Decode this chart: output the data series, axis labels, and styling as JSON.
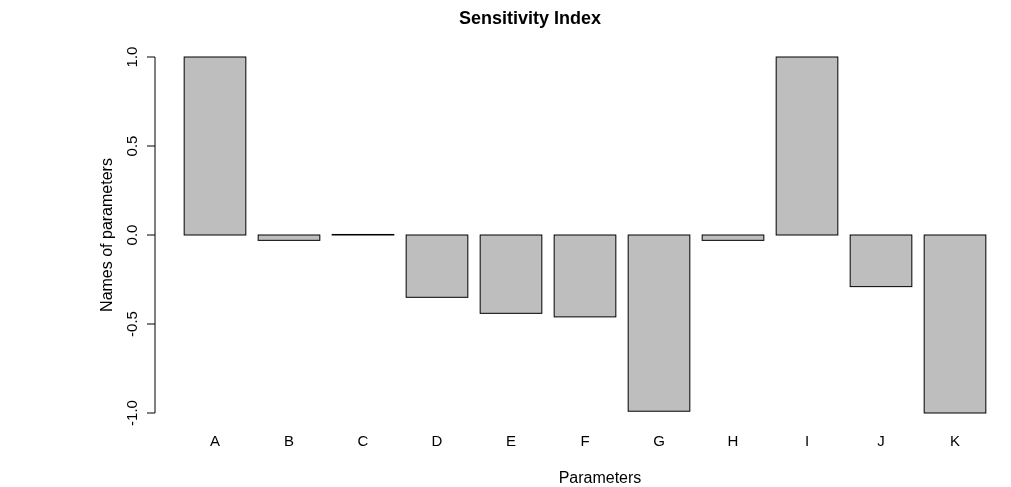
{
  "chart_data": {
    "type": "bar",
    "title": "Sensitivity Index",
    "xlabel": "Parameters",
    "ylabel": "Names of parameters",
    "categories": [
      "A",
      "B",
      "C",
      "D",
      "E",
      "F",
      "G",
      "H",
      "I",
      "J",
      "K"
    ],
    "values": [
      1.0,
      -0.03,
      0.003,
      -0.35,
      -0.44,
      -0.46,
      -0.99,
      -0.03,
      1.0,
      -0.29,
      -1.0
    ],
    "color": "#bebebe",
    "ylim": [
      -1.0,
      1.0
    ],
    "yticks": [
      {
        "value": -1,
        "label": "-1.0"
      },
      {
        "value": -0.5,
        "label": "-0.5"
      },
      {
        "value": 0,
        "label": "0.0"
      },
      {
        "value": 0.5,
        "label": "0.5"
      },
      {
        "value": 1,
        "label": "1.0"
      }
    ],
    "grid": false
  }
}
